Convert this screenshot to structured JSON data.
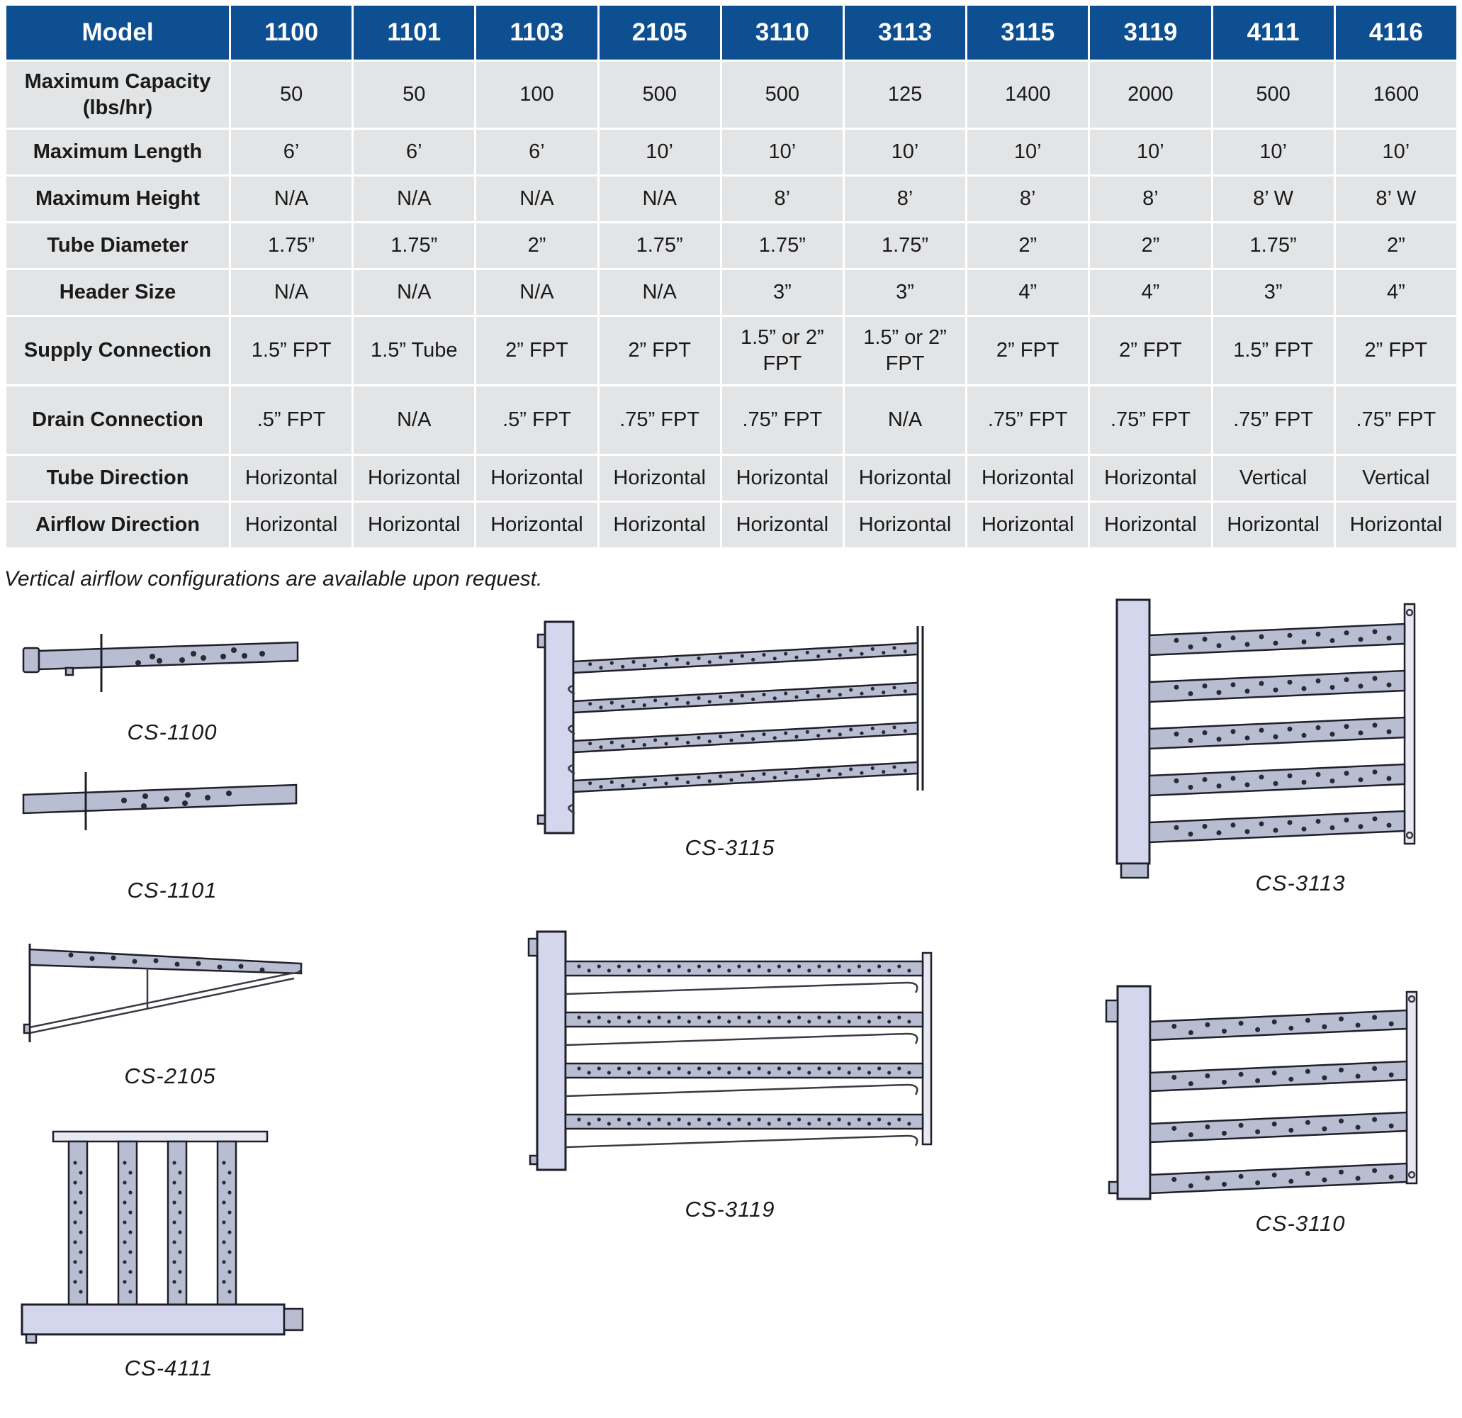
{
  "table": {
    "header_label": "Model",
    "models": [
      "1100",
      "1101",
      "1103",
      "2105",
      "3110",
      "3113",
      "3115",
      "3119",
      "4111",
      "4116"
    ],
    "rows": [
      {
        "label": "Maximum Capacity (lbs/hr)",
        "values": [
          "50",
          "50",
          "100",
          "500",
          "500",
          "125",
          "1400",
          "2000",
          "500",
          "1600"
        ]
      },
      {
        "label": "Maximum Length",
        "values": [
          "6’",
          "6’",
          "6’",
          "10’",
          "10’",
          "10’",
          "10’",
          "10’",
          "10’",
          "10’"
        ]
      },
      {
        "label": "Maximum Height",
        "values": [
          "N/A",
          "N/A",
          "N/A",
          "N/A",
          "8’",
          "8’",
          "8’",
          "8’",
          "8’ W",
          "8’ W"
        ]
      },
      {
        "label": "Tube Diameter",
        "values": [
          "1.75”",
          "1.75”",
          "2”",
          "1.75”",
          "1.75”",
          "1.75”",
          "2”",
          "2”",
          "1.75”",
          "2”"
        ]
      },
      {
        "label": "Header Size",
        "values": [
          "N/A",
          "N/A",
          "N/A",
          "N/A",
          "3”",
          "3”",
          "4”",
          "4”",
          "3”",
          "4”"
        ]
      },
      {
        "label": "Supply Connection",
        "values": [
          "1.5” FPT",
          "1.5” Tube",
          "2” FPT",
          "2” FPT",
          "1.5” or 2” FPT",
          "1.5” or 2” FPT",
          "2” FPT",
          "2” FPT",
          "1.5” FPT",
          "2” FPT"
        ]
      },
      {
        "label": "Drain Connection",
        "values": [
          ".5” FPT",
          "N/A",
          ".5” FPT",
          ".75” FPT",
          ".75” FPT",
          "N/A",
          ".75” FPT",
          ".75” FPT",
          ".75” FPT",
          ".75” FPT"
        ]
      },
      {
        "label": "Tube Direction",
        "values": [
          "Horizontal",
          "Horizontal",
          "Horizontal",
          "Horizontal",
          "Horizontal",
          "Horizontal",
          "Horizontal",
          "Horizontal",
          "Vertical",
          "Vertical"
        ]
      },
      {
        "label": "Airflow Direction",
        "values": [
          "Horizontal",
          "Horizontal",
          "Horizontal",
          "Horizontal",
          "Horizontal",
          "Horizontal",
          "Horizontal",
          "Horizontal",
          "Horizontal",
          "Horizontal"
        ]
      }
    ]
  },
  "note": "Vertical airflow configurations are available upon request.",
  "captions": {
    "cs1100": "CS-1100",
    "cs1101": "CS-1101",
    "cs2105": "CS-2105",
    "cs4111": "CS-4111",
    "cs3115": "CS-3115",
    "cs3119": "CS-3119",
    "cs3113": "CS-3113",
    "cs3110": "CS-3110"
  },
  "colors": {
    "header_bg": "#0d4f91",
    "cell_bg": "#e3e4e6",
    "tube_fill": "#b9bdd1",
    "header_box_fill": "#d3d6ec"
  }
}
